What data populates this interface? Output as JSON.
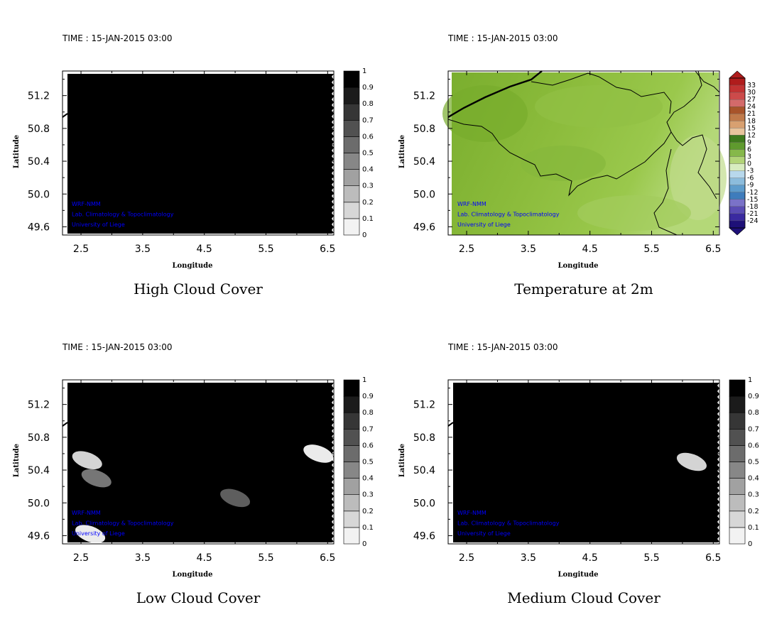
{
  "colors": {
    "background": "#ffffff",
    "frame": "#000000",
    "credit": "#0000ff",
    "cloud_dark": "#000000",
    "land_base": "#8cbc3c",
    "border_line": "#000000"
  },
  "panels": [
    {
      "id": "high-cloud",
      "time_label": "TIME : 15-JAN-2015 03:00",
      "title": "High Cloud Cover",
      "xlabel": "Longitude",
      "ylabel": "Latitude",
      "credits": [
        "WRF-NMM",
        "Lab. Climatology & Topoclimatology",
        "University of Liege"
      ],
      "colorbar": "cloud"
    },
    {
      "id": "temperature",
      "time_label": "TIME : 15-JAN-2015 03:00",
      "title": "Temperature at 2m",
      "xlabel": "Longitude",
      "ylabel": "Latitude",
      "credits": [
        "WRF-NMM",
        "Lab. Climatology & Topoclimatology",
        "University of Liege"
      ],
      "colorbar": "temperature"
    },
    {
      "id": "low-cloud",
      "time_label": "TIME : 15-JAN-2015 03:00",
      "title": "Low Cloud Cover",
      "xlabel": "Longitude",
      "ylabel": "Latitude",
      "credits": [
        "WRF-NMM",
        "Lab. Climatology & Topoclimatology",
        "University of Liege"
      ],
      "colorbar": "cloud"
    },
    {
      "id": "medium-cloud",
      "time_label": "TIME : 15-JAN-2015 03:00",
      "title": "Medium Cloud Cover",
      "xlabel": "Longitude",
      "ylabel": "Latitude",
      "credits": [
        "WRF-NMM",
        "Lab. Climatology & Topoclimatology",
        "University of Liege"
      ],
      "colorbar": "cloud"
    }
  ],
  "chart_data": [
    {
      "type": "heatmap",
      "title": "High Cloud Cover",
      "xlabel": "Longitude",
      "ylabel": "Latitude",
      "xlim": [
        2.2,
        6.6
      ],
      "ylim": [
        49.5,
        51.5
      ],
      "x_ticks": [
        "2.5",
        "3.5",
        "4.5",
        "5.5",
        "6.5"
      ],
      "y_ticks": [
        "49.6",
        "50.0",
        "50.4",
        "50.8",
        "51.2"
      ],
      "colorbar_levels": [
        "0",
        "0.1",
        "0.2",
        "0.3",
        "0.4",
        "0.5",
        "0.6",
        "0.7",
        "0.8",
        "0.9",
        "1"
      ],
      "field_value": 1
    },
    {
      "type": "heatmap",
      "title": "Temperature at 2m",
      "xlabel": "Longitude",
      "ylabel": "Latitude",
      "xlim": [
        2.2,
        6.6
      ],
      "ylim": [
        49.5,
        51.5
      ],
      "x_ticks": [
        "2.5",
        "3.5",
        "4.5",
        "5.5",
        "6.5"
      ],
      "y_ticks": [
        "49.6",
        "50.0",
        "50.4",
        "50.8",
        "51.2"
      ],
      "colorbar_levels": [
        "33",
        "30",
        "27",
        "24",
        "21",
        "18",
        "15",
        "12",
        "9",
        "6",
        "3",
        "0",
        "-3",
        "-6",
        "-9",
        "-12",
        "-15",
        "-18",
        "-21",
        "-24"
      ],
      "colorbar_colors": [
        "#b01c1c",
        "#c23232",
        "#cc4a4a",
        "#d36a6a",
        "#a8542a",
        "#c07a4a",
        "#d8a070",
        "#e8c49c",
        "#3e7a1c",
        "#5f9a2e",
        "#86b84a",
        "#b2d478",
        "#d8ecc0",
        "#b8d8ec",
        "#8cbcdc",
        "#5e9ccc",
        "#3e7cbc",
        "#7a72c8",
        "#5a4cb4",
        "#3a2aa0",
        "#1e1078"
      ],
      "field_range": [
        0,
        9
      ]
    },
    {
      "type": "heatmap",
      "title": "Low Cloud Cover",
      "xlabel": "Longitude",
      "ylabel": "Latitude",
      "xlim": [
        2.2,
        6.6
      ],
      "ylim": [
        49.5,
        51.5
      ],
      "x_ticks": [
        "2.5",
        "3.5",
        "4.5",
        "5.5",
        "6.5"
      ],
      "y_ticks": [
        "49.6",
        "50.0",
        "50.4",
        "50.8",
        "51.2"
      ],
      "colorbar_levels": [
        "0",
        "0.1",
        "0.2",
        "0.3",
        "0.4",
        "0.5",
        "0.6",
        "0.7",
        "0.8",
        "0.9",
        "1"
      ],
      "field_value": 1,
      "clear_patches": [
        {
          "lon": 2.6,
          "lat": 50.52,
          "value": 0.1
        },
        {
          "lon": 2.75,
          "lat": 50.3,
          "value": 0.5
        },
        {
          "lon": 2.65,
          "lat": 49.62,
          "value": 0
        },
        {
          "lon": 6.35,
          "lat": 50.6,
          "value": 0
        },
        {
          "lon": 5.0,
          "lat": 50.06,
          "value": 0.6
        }
      ]
    },
    {
      "type": "heatmap",
      "title": "Medium Cloud Cover",
      "xlabel": "Longitude",
      "ylabel": "Latitude",
      "xlim": [
        2.2,
        6.6
      ],
      "ylim": [
        49.5,
        51.5
      ],
      "x_ticks": [
        "2.5",
        "3.5",
        "4.5",
        "5.5",
        "6.5"
      ],
      "y_ticks": [
        "49.6",
        "50.0",
        "50.4",
        "50.8",
        "51.2"
      ],
      "colorbar_levels": [
        "0",
        "0.1",
        "0.2",
        "0.3",
        "0.4",
        "0.5",
        "0.6",
        "0.7",
        "0.8",
        "0.9",
        "1"
      ],
      "field_value": 1,
      "clear_patches": [
        {
          "lon": 6.15,
          "lat": 50.5,
          "value": 0.1
        }
      ]
    }
  ]
}
